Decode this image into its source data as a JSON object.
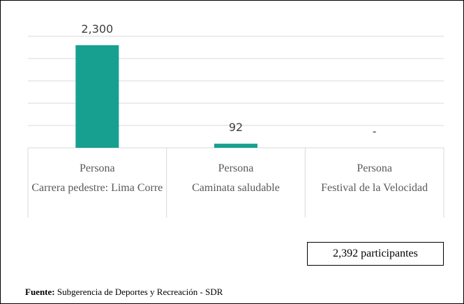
{
  "chart_data": {
    "type": "bar",
    "category_units": [
      "Persona",
      "Persona",
      "Persona"
    ],
    "categories": [
      "Carrera pedestre: Lima Corre",
      "Caminata saludable",
      "Festival de la Velocidad"
    ],
    "values": [
      2300,
      92,
      0
    ],
    "value_labels": [
      "2,300",
      "92",
      "-"
    ],
    "color": "#17a08f",
    "ylim": [
      0,
      2500
    ],
    "yticks": [
      0,
      500,
      1000,
      1500,
      2000,
      2500
    ],
    "grid": true,
    "total_label": "2,392 participantes",
    "source_label": "Fuente:",
    "source": "Subgerencia de Deportes y Recreación - SDR"
  }
}
